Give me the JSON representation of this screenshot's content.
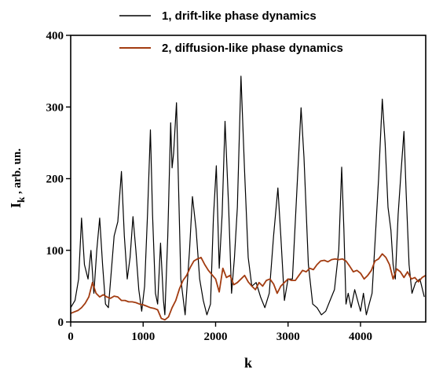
{
  "chart_data": {
    "type": "line",
    "title": "",
    "xlabel": "k",
    "ylabel_main": "I",
    "ylabel_sub": "k",
    "ylabel_rest": " , arb. un.",
    "xlim": [
      0,
      4900
    ],
    "ylim": [
      0,
      400
    ],
    "xticks": [
      0,
      1000,
      2000,
      3000,
      4000
    ],
    "yticks": [
      0,
      100,
      200,
      300,
      400
    ],
    "xticks_labels": [
      "0",
      "1000",
      "2000",
      "3000",
      "4000"
    ],
    "yticks_labels": [
      "0",
      "100",
      "200",
      "300",
      "400"
    ],
    "legend_position": "top-right",
    "series": [
      {
        "name": "1, drift-like phase dynamics",
        "color": "#000000",
        "x": [
          0,
          60,
          110,
          150,
          190,
          240,
          280,
          320,
          360,
          400,
          440,
          480,
          520,
          600,
          650,
          700,
          740,
          780,
          820,
          860,
          900,
          940,
          980,
          1020,
          1060,
          1100,
          1130,
          1170,
          1200,
          1240,
          1280,
          1300,
          1340,
          1380,
          1400,
          1420,
          1460,
          1520,
          1580,
          1640,
          1680,
          1730,
          1780,
          1830,
          1880,
          1930,
          1970,
          2010,
          2050,
          2090,
          2130,
          2180,
          2220,
          2260,
          2300,
          2350,
          2400,
          2450,
          2500,
          2560,
          2620,
          2680,
          2740,
          2800,
          2860,
          2900,
          2950,
          3000,
          3060,
          3120,
          3180,
          3220,
          3280,
          3340,
          3400,
          3460,
          3520,
          3580,
          3640,
          3700,
          3740,
          3770,
          3800,
          3830,
          3870,
          3920,
          3960,
          4000,
          4040,
          4080,
          4120,
          4160,
          4200,
          4250,
          4300,
          4340,
          4380,
          4420,
          4450,
          4480,
          4520,
          4560,
          4600,
          4630,
          4670,
          4710,
          4760,
          4820,
          4880
        ],
        "y": [
          20,
          30,
          60,
          145,
          80,
          60,
          100,
          40,
          100,
          145,
          80,
          25,
          20,
          120,
          140,
          210,
          120,
          60,
          90,
          147,
          100,
          45,
          15,
          50,
          150,
          268,
          150,
          40,
          25,
          110,
          30,
          10,
          120,
          278,
          215,
          235,
          306,
          60,
          10,
          100,
          175,
          130,
          60,
          30,
          10,
          25,
          145,
          218,
          75,
          150,
          280,
          160,
          40,
          90,
          160,
          343,
          210,
          90,
          50,
          55,
          35,
          20,
          40,
          120,
          187,
          120,
          30,
          60,
          60,
          180,
          299,
          230,
          80,
          25,
          20,
          10,
          15,
          30,
          45,
          100,
          216,
          130,
          25,
          40,
          20,
          45,
          30,
          15,
          40,
          10,
          25,
          40,
          110,
          200,
          311,
          250,
          160,
          128,
          80,
          60,
          150,
          210,
          266,
          180,
          80,
          40,
          55,
          60,
          35
        ]
      },
      {
        "name": "2, diffusion-like phase dynamics",
        "color": "#a23b10",
        "x": [
          0,
          50,
          100,
          150,
          200,
          250,
          300,
          350,
          400,
          450,
          500,
          550,
          600,
          650,
          700,
          750,
          800,
          850,
          900,
          950,
          1000,
          1050,
          1100,
          1150,
          1200,
          1250,
          1300,
          1350,
          1400,
          1450,
          1500,
          1550,
          1600,
          1650,
          1700,
          1750,
          1800,
          1850,
          1900,
          1950,
          2000,
          2050,
          2100,
          2150,
          2200,
          2250,
          2300,
          2350,
          2400,
          2450,
          2500,
          2550,
          2600,
          2650,
          2700,
          2750,
          2800,
          2850,
          2900,
          2950,
          3000,
          3050,
          3100,
          3150,
          3200,
          3250,
          3300,
          3350,
          3400,
          3450,
          3500,
          3550,
          3600,
          3650,
          3700,
          3750,
          3800,
          3850,
          3900,
          3950,
          4000,
          4050,
          4100,
          4150,
          4200,
          4250,
          4300,
          4350,
          4400,
          4450,
          4500,
          4550,
          4600,
          4650,
          4700,
          4750,
          4800,
          4850,
          4900
        ],
        "y": [
          12,
          14,
          16,
          20,
          26,
          35,
          55,
          40,
          35,
          38,
          35,
          33,
          36,
          35,
          30,
          30,
          28,
          28,
          27,
          25,
          24,
          22,
          20,
          19,
          17,
          5,
          3,
          7,
          20,
          30,
          46,
          58,
          65,
          76,
          85,
          88,
          90,
          80,
          72,
          66,
          60,
          42,
          75,
          62,
          65,
          52,
          55,
          60,
          65,
          56,
          50,
          45,
          55,
          50,
          58,
          60,
          53,
          40,
          50,
          55,
          60,
          58,
          58,
          65,
          72,
          70,
          75,
          73,
          80,
          85,
          86,
          84,
          87,
          88,
          87,
          88,
          85,
          78,
          70,
          72,
          68,
          60,
          65,
          72,
          85,
          88,
          95,
          90,
          80,
          60,
          74,
          70,
          62,
          70,
          60,
          62,
          56,
          62,
          65
        ]
      }
    ]
  }
}
